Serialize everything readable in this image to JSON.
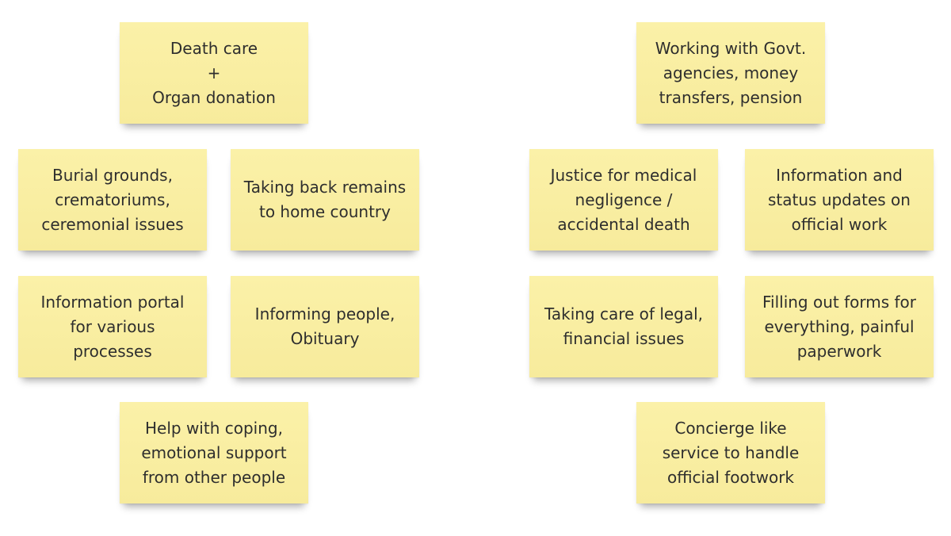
{
  "notes": {
    "death_care": "Death care\n+\nOrgan donation",
    "burial": "Burial grounds,\ncrematoriums,\nceremonial issues",
    "remains": "Taking back remains\nto home country",
    "portal": "Information portal\nfor various\nprocesses",
    "informing": "Informing people,\nObituary",
    "coping": "Help with coping,\nemotional support\nfrom other people",
    "govt": "Working with Govt.\nagencies, money\ntransfers, pension",
    "justice": "Justice for medical\nnegligence /\naccidental death",
    "status": "Information and\nstatus updates on\nofficial work",
    "legal": "Taking care of legal,\nfinancial issues",
    "forms": "Filling out forms for\neverything, painful\npaperwork",
    "concierge": "Concierge like\nservice to handle\nofficial footwork"
  },
  "colors": {
    "note_fill": "#f9ef9f",
    "text": "#2e2e2e",
    "background": "#ffffff"
  }
}
